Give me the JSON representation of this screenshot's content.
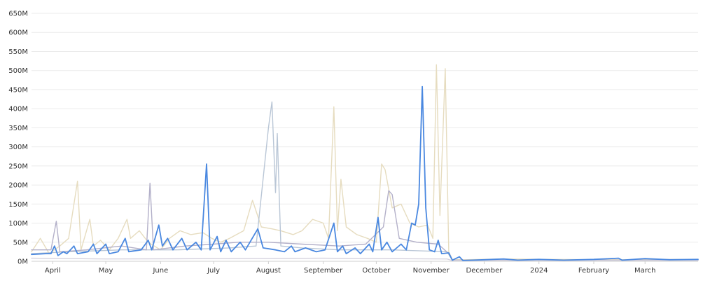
{
  "chart_data": {
    "type": "line",
    "title": "",
    "xlabel": "",
    "ylabel": "",
    "ylim": [
      0,
      650000000
    ],
    "yticks": [
      {
        "value": 0,
        "label": "0M"
      },
      {
        "value": 50000000,
        "label": "50M"
      },
      {
        "value": 100000000,
        "label": "100M"
      },
      {
        "value": 150000000,
        "label": "150M"
      },
      {
        "value": 200000000,
        "label": "200M"
      },
      {
        "value": 250000000,
        "label": "250M"
      },
      {
        "value": 300000000,
        "label": "300M"
      },
      {
        "value": 350000000,
        "label": "350M"
      },
      {
        "value": 400000000,
        "label": "400M"
      },
      {
        "value": 450000000,
        "label": "450M"
      },
      {
        "value": 500000000,
        "label": "500M"
      },
      {
        "value": 550000000,
        "label": "550M"
      },
      {
        "value": 600000000,
        "label": "600M"
      },
      {
        "value": 650000000,
        "label": "650M"
      }
    ],
    "xlim": [
      "2023-03-20",
      "2024-03-31"
    ],
    "xticks": [
      {
        "date": "2023-04-01",
        "label": "April"
      },
      {
        "date": "2023-05-01",
        "label": "May"
      },
      {
        "date": "2023-06-01",
        "label": "June"
      },
      {
        "date": "2023-07-01",
        "label": "July"
      },
      {
        "date": "2023-08-01",
        "label": "August"
      },
      {
        "date": "2023-09-01",
        "label": "September"
      },
      {
        "date": "2023-10-01",
        "label": "October"
      },
      {
        "date": "2023-11-01",
        "label": "November"
      },
      {
        "date": "2023-12-01",
        "label": "December"
      },
      {
        "date": "2024-01-01",
        "label": "2024"
      },
      {
        "date": "2024-02-01",
        "label": "February"
      },
      {
        "date": "2024-03-01",
        "label": "March"
      }
    ],
    "grid": true,
    "legend": "none",
    "series": [
      {
        "color": "#e6dcbf",
        "points": [
          [
            "2023-03-20",
            25
          ],
          [
            "2023-03-25",
            60
          ],
          [
            "2023-03-30",
            20
          ],
          [
            "2023-04-05",
            40
          ],
          [
            "2023-04-10",
            60
          ],
          [
            "2023-04-15",
            210
          ],
          [
            "2023-04-17",
            30
          ],
          [
            "2023-04-22",
            110
          ],
          [
            "2023-04-24",
            40
          ],
          [
            "2023-04-28",
            55
          ],
          [
            "2023-05-03",
            30
          ],
          [
            "2023-05-08",
            60
          ],
          [
            "2023-05-13",
            110
          ],
          [
            "2023-05-15",
            60
          ],
          [
            "2023-05-20",
            80
          ],
          [
            "2023-05-25",
            50
          ],
          [
            "2023-06-01",
            30
          ],
          [
            "2023-06-06",
            60
          ],
          [
            "2023-06-12",
            80
          ],
          [
            "2023-06-18",
            70
          ],
          [
            "2023-06-25",
            75
          ],
          [
            "2023-06-30",
            60
          ],
          [
            "2023-07-05",
            50
          ],
          [
            "2023-07-10",
            60
          ],
          [
            "2023-07-18",
            80
          ],
          [
            "2023-07-23",
            160
          ],
          [
            "2023-07-28",
            90
          ],
          [
            "2023-08-03",
            85
          ],
          [
            "2023-08-08",
            80
          ],
          [
            "2023-08-15",
            70
          ],
          [
            "2023-08-20",
            80
          ],
          [
            "2023-08-26",
            110
          ],
          [
            "2023-09-01",
            100
          ],
          [
            "2023-09-04",
            60
          ],
          [
            "2023-09-07",
            405
          ],
          [
            "2023-09-09",
            80
          ],
          [
            "2023-09-11",
            215
          ],
          [
            "2023-09-14",
            90
          ],
          [
            "2023-09-20",
            70
          ],
          [
            "2023-09-26",
            60
          ],
          [
            "2023-10-01",
            50
          ],
          [
            "2023-10-04",
            255
          ],
          [
            "2023-10-06",
            240
          ],
          [
            "2023-10-10",
            140
          ],
          [
            "2023-10-15",
            150
          ],
          [
            "2023-10-20",
            100
          ],
          [
            "2023-10-25",
            90
          ],
          [
            "2023-10-30",
            95
          ],
          [
            "2023-11-02",
            60
          ],
          [
            "2023-11-04",
            515
          ],
          [
            "2023-11-06",
            120
          ],
          [
            "2023-11-09",
            505
          ],
          [
            "2023-11-11",
            25
          ],
          [
            "2023-11-13",
            5
          ],
          [
            "2023-11-20",
            4
          ],
          [
            "2023-12-10",
            6
          ],
          [
            "2024-01-10",
            5
          ],
          [
            "2024-02-10",
            4
          ],
          [
            "2024-03-20",
            5
          ],
          [
            "2024-03-31",
            3
          ]
        ]
      },
      {
        "color": "#b9c6d6",
        "points": [
          [
            "2023-03-20",
            20
          ],
          [
            "2023-04-10",
            25
          ],
          [
            "2023-05-10",
            30
          ],
          [
            "2023-06-10",
            30
          ],
          [
            "2023-07-10",
            35
          ],
          [
            "2023-07-25",
            40
          ],
          [
            "2023-08-01",
            350
          ],
          [
            "2023-08-03",
            418
          ],
          [
            "2023-08-05",
            180
          ],
          [
            "2023-08-06",
            335
          ],
          [
            "2023-08-08",
            40
          ],
          [
            "2023-08-20",
            35
          ],
          [
            "2023-09-10",
            30
          ],
          [
            "2023-10-10",
            30
          ],
          [
            "2023-11-10",
            25
          ],
          [
            "2023-11-13",
            3
          ],
          [
            "2024-03-31",
            3
          ]
        ]
      },
      {
        "color": "#b3b0c9",
        "points": [
          [
            "2023-03-20",
            30
          ],
          [
            "2023-03-31",
            30
          ],
          [
            "2023-04-03",
            105
          ],
          [
            "2023-04-05",
            25
          ],
          [
            "2023-04-20",
            30
          ],
          [
            "2023-05-10",
            40
          ],
          [
            "2023-05-24",
            30
          ],
          [
            "2023-05-26",
            205
          ],
          [
            "2023-05-28",
            30
          ],
          [
            "2023-06-15",
            40
          ],
          [
            "2023-07-01",
            45
          ],
          [
            "2023-07-15",
            50
          ],
          [
            "2023-08-01",
            50
          ],
          [
            "2023-08-20",
            45
          ],
          [
            "2023-09-10",
            40
          ],
          [
            "2023-09-25",
            45
          ],
          [
            "2023-10-05",
            90
          ],
          [
            "2023-10-08",
            185
          ],
          [
            "2023-10-10",
            175
          ],
          [
            "2023-10-14",
            60
          ],
          [
            "2023-10-24",
            50
          ],
          [
            "2023-11-05",
            45
          ],
          [
            "2023-11-11",
            20
          ],
          [
            "2023-11-13",
            3
          ],
          [
            "2024-03-31",
            3
          ]
        ]
      },
      {
        "color": "#d5d2de",
        "points": [
          [
            "2023-03-20",
            8
          ],
          [
            "2023-05-01",
            6
          ],
          [
            "2023-07-01",
            7
          ],
          [
            "2023-09-01",
            8
          ],
          [
            "2023-11-10",
            6
          ],
          [
            "2023-11-13",
            2
          ],
          [
            "2024-03-31",
            2
          ]
        ]
      },
      {
        "color": "#4a88e0",
        "points": [
          [
            "2023-03-20",
            18
          ],
          [
            "2023-03-28",
            20
          ],
          [
            "2023-03-31",
            20
          ],
          [
            "2023-04-02",
            40
          ],
          [
            "2023-04-04",
            15
          ],
          [
            "2023-04-07",
            25
          ],
          [
            "2023-04-09",
            20
          ],
          [
            "2023-04-13",
            40
          ],
          [
            "2023-04-15",
            20
          ],
          [
            "2023-04-21",
            25
          ],
          [
            "2023-04-24",
            45
          ],
          [
            "2023-04-26",
            20
          ],
          [
            "2023-05-01",
            45
          ],
          [
            "2023-05-03",
            20
          ],
          [
            "2023-05-08",
            25
          ],
          [
            "2023-05-12",
            60
          ],
          [
            "2023-05-14",
            25
          ],
          [
            "2023-05-21",
            30
          ],
          [
            "2023-05-25",
            55
          ],
          [
            "2023-05-27",
            30
          ],
          [
            "2023-05-31",
            95
          ],
          [
            "2023-06-02",
            40
          ],
          [
            "2023-06-05",
            60
          ],
          [
            "2023-06-08",
            30
          ],
          [
            "2023-06-13",
            60
          ],
          [
            "2023-06-16",
            30
          ],
          [
            "2023-06-21",
            50
          ],
          [
            "2023-06-24",
            30
          ],
          [
            "2023-06-27",
            255
          ],
          [
            "2023-06-29",
            30
          ],
          [
            "2023-07-03",
            65
          ],
          [
            "2023-07-05",
            25
          ],
          [
            "2023-07-08",
            55
          ],
          [
            "2023-07-11",
            25
          ],
          [
            "2023-07-16",
            50
          ],
          [
            "2023-07-19",
            30
          ],
          [
            "2023-07-26",
            85
          ],
          [
            "2023-07-29",
            35
          ],
          [
            "2023-08-05",
            30
          ],
          [
            "2023-08-10",
            25
          ],
          [
            "2023-08-14",
            40
          ],
          [
            "2023-08-16",
            25
          ],
          [
            "2023-08-22",
            35
          ],
          [
            "2023-08-28",
            25
          ],
          [
            "2023-09-02",
            30
          ],
          [
            "2023-09-07",
            100
          ],
          [
            "2023-09-09",
            25
          ],
          [
            "2023-09-12",
            40
          ],
          [
            "2023-09-14",
            20
          ],
          [
            "2023-09-19",
            35
          ],
          [
            "2023-09-22",
            20
          ],
          [
            "2023-09-27",
            45
          ],
          [
            "2023-09-29",
            25
          ],
          [
            "2023-10-02",
            115
          ],
          [
            "2023-10-04",
            30
          ],
          [
            "2023-10-07",
            50
          ],
          [
            "2023-10-10",
            25
          ],
          [
            "2023-10-15",
            45
          ],
          [
            "2023-10-18",
            30
          ],
          [
            "2023-10-21",
            100
          ],
          [
            "2023-10-23",
            95
          ],
          [
            "2023-10-25",
            150
          ],
          [
            "2023-10-27",
            458
          ],
          [
            "2023-10-29",
            140
          ],
          [
            "2023-10-31",
            30
          ],
          [
            "2023-11-03",
            25
          ],
          [
            "2023-11-05",
            55
          ],
          [
            "2023-11-07",
            20
          ],
          [
            "2023-11-11",
            22
          ],
          [
            "2023-11-13",
            3
          ],
          [
            "2023-11-17",
            12
          ],
          [
            "2023-11-19",
            2
          ],
          [
            "2023-12-01",
            4
          ],
          [
            "2023-12-12",
            6
          ],
          [
            "2023-12-20",
            3
          ],
          [
            "2024-01-01",
            5
          ],
          [
            "2024-01-15",
            3
          ],
          [
            "2024-02-01",
            5
          ],
          [
            "2024-02-15",
            8
          ],
          [
            "2024-02-17",
            3
          ],
          [
            "2024-03-01",
            7
          ],
          [
            "2024-03-15",
            4
          ],
          [
            "2024-03-31",
            5
          ]
        ]
      }
    ]
  }
}
